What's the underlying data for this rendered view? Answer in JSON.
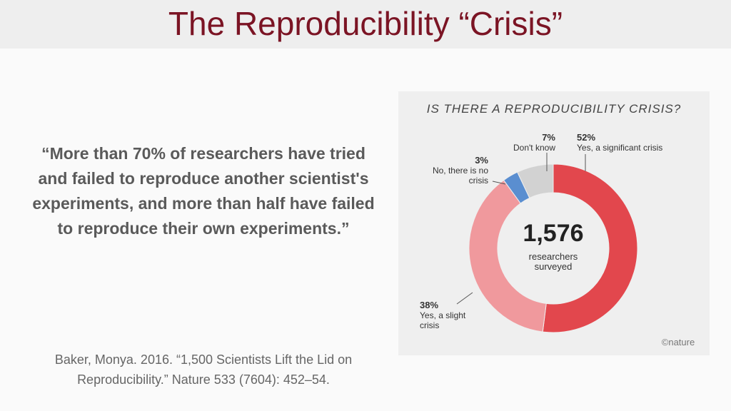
{
  "slide_title": "The Reproducibility “Crisis”",
  "quote": "“More than 70% of researchers have tried and failed to reproduce another scientist's experiments, and more than half have failed to reproduce their own experiments.”",
  "citation": "Baker, Monya. 2016. “1,500 Scientists Lift the Lid on Reproducibility.” Nature 533 (7604): 452–54.",
  "chart_data": {
    "type": "pie",
    "donut": true,
    "title": "IS THERE A REPRODUCIBILITY CRISIS?",
    "categories": [
      "Yes, a significant crisis",
      "Yes, a slight crisis",
      "No, there is no crisis",
      "Don't know"
    ],
    "values": [
      52,
      38,
      3,
      7
    ],
    "value_labels": [
      "52%",
      "38%",
      "3%",
      "7%"
    ],
    "colors": [
      "#e2474d",
      "#f0999d",
      "#5a8ed0",
      "#d2d2d2"
    ],
    "center_label": {
      "value": 1576,
      "label": "1,576"
    },
    "center_text": "researchers surveyed",
    "credit": "©nature"
  }
}
